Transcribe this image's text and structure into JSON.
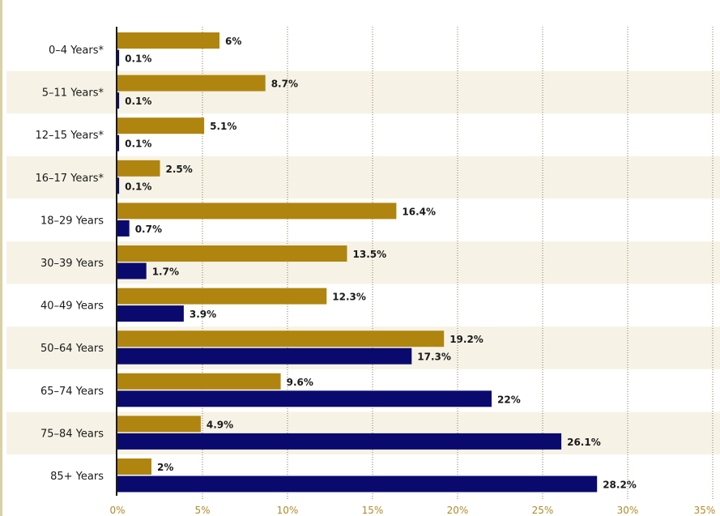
{
  "chart_data": {
    "type": "bar",
    "orientation": "horizontal",
    "title": "",
    "xlabel": "",
    "ylabel": "",
    "xlim": [
      0,
      35
    ],
    "x_ticks": [
      "0%",
      "5%",
      "10%",
      "15%",
      "20%",
      "25%",
      "30%",
      "35%"
    ],
    "x_tick_values": [
      0,
      5,
      10,
      15,
      20,
      25,
      30,
      35
    ],
    "grid": true,
    "categories": [
      "0–4 Years*",
      "5–11 Years*",
      "12–15 Years*",
      "16–17 Years*",
      "18–29 Years",
      "30–39 Years",
      "40–49 Years",
      "50–64 Years",
      "65–74 Years",
      "75–84 Years",
      "85+ Years"
    ],
    "series": [
      {
        "name": "series-1",
        "color": "#b0850f",
        "values": [
          6,
          8.7,
          5.1,
          2.5,
          16.4,
          13.5,
          12.3,
          19.2,
          9.6,
          4.9,
          2
        ],
        "labels": [
          "6%",
          "8.7%",
          "5.1%",
          "2.5%",
          "16.4%",
          "13.5%",
          "12.3%",
          "19.2%",
          "9.6%",
          "4.9%",
          "2%"
        ]
      },
      {
        "name": "series-2",
        "color": "#0a0a6e",
        "values": [
          0.1,
          0.1,
          0.1,
          0.1,
          0.7,
          1.7,
          3.9,
          17.3,
          22,
          26.1,
          28.2
        ],
        "labels": [
          "0.1%",
          "0.1%",
          "0.1%",
          "0.1%",
          "0.7%",
          "1.7%",
          "3.9%",
          "17.3%",
          "22%",
          "26.1%",
          "28.2%"
        ]
      }
    ],
    "stripe_color": "#f6f3e6",
    "gridline_color": "#8a7a50"
  }
}
